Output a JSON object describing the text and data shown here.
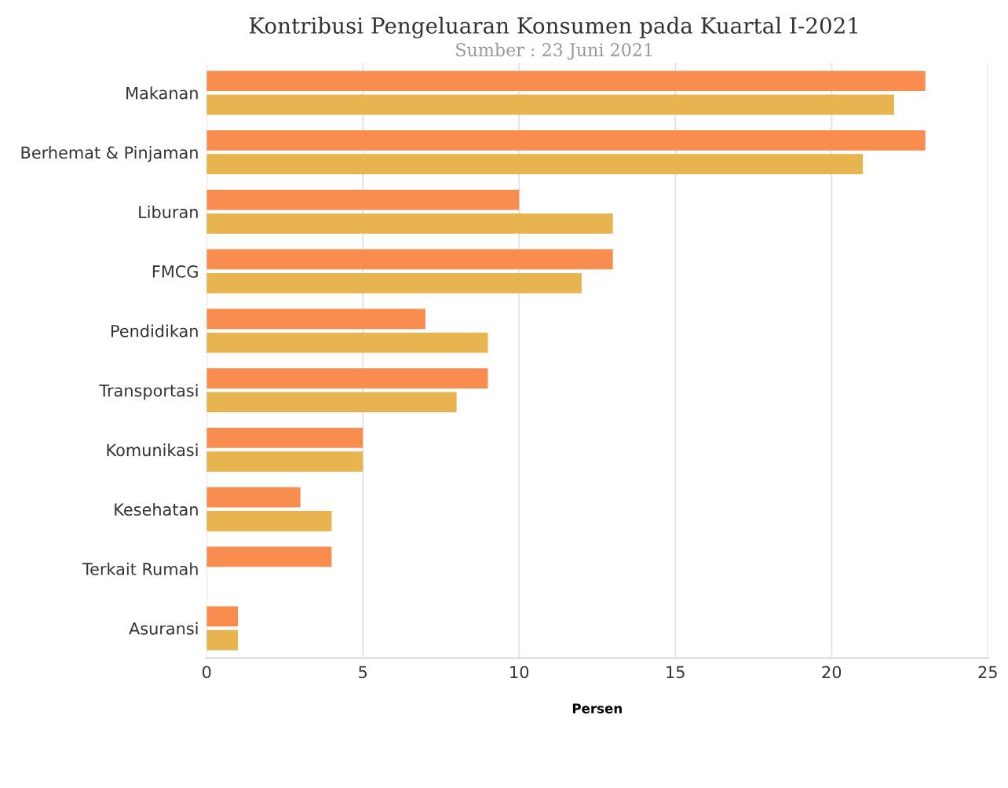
{
  "chart_data": {
    "type": "bar",
    "orientation": "horizontal",
    "title": "Kontribusi Pengeluaran Konsumen pada Kuartal I-2021",
    "subtitle": "Sumber : 23 Juni 2021",
    "xlabel": "Persen",
    "categories": [
      "Makanan",
      "Berhemat & Pinjaman",
      "Liburan",
      "FMCG",
      "Pendidikan",
      "Transportasi",
      "Komunikasi",
      "Kesehatan",
      "Terkait Rumah",
      "Asuransi"
    ],
    "series": [
      {
        "color": "#f98c4f",
        "values": [
          23,
          23,
          10,
          13,
          7,
          9,
          5,
          3,
          4,
          1
        ]
      },
      {
        "color": "#e8b44f",
        "values": [
          22,
          21,
          13,
          12,
          9,
          8,
          5,
          4,
          null,
          1
        ]
      }
    ],
    "xlim": [
      0,
      25
    ],
    "xticks": [
      0,
      5,
      10,
      15,
      20,
      25
    ],
    "grid": "x",
    "legend": false
  }
}
